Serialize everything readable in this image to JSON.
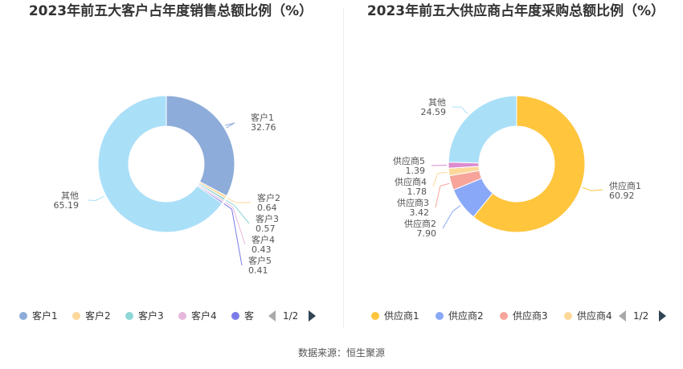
{
  "charts": [
    {
      "title": "2023年前五大客户占年度销售总额比例（%）",
      "pager": "1/2",
      "legend": [
        "客户1",
        "客户2",
        "客户3",
        "客户4",
        "客"
      ]
    },
    {
      "title": "2023年前五大供应商占年度采购总额比例（%）",
      "pager": "1/2",
      "legend": [
        "供应商1",
        "供应商2",
        "供应商3",
        "供应商4"
      ]
    }
  ],
  "source": "数据来源：恒生聚源",
  "chart_data": [
    {
      "type": "pie",
      "title": "2023年前五大客户占年度销售总额比例（%）",
      "donut": true,
      "legend_position": "bottom",
      "slices": [
        {
          "name": "客户1",
          "value": 32.76,
          "label": "32.76",
          "color": "#8eacd9"
        },
        {
          "name": "客户2",
          "value": 0.64,
          "label": "0.64",
          "color": "#fdd89b"
        },
        {
          "name": "客户3",
          "value": 0.57,
          "label": "0.57",
          "color": "#8fd6d6"
        },
        {
          "name": "客户4",
          "value": 0.43,
          "label": "0.43",
          "color": "#e6b8dc"
        },
        {
          "name": "客户5",
          "value": 0.41,
          "label": "0.41",
          "color": "#7b7be8"
        },
        {
          "name": "其他",
          "value": 65.19,
          "label": "65.19",
          "color": "#aadff8"
        }
      ]
    },
    {
      "type": "pie",
      "title": "2023年前五大供应商占年度采购总额比例（%）",
      "donut": true,
      "legend_position": "bottom",
      "slices": [
        {
          "name": "供应商1",
          "value": 60.92,
          "label": "60.92",
          "color": "#ffc53d"
        },
        {
          "name": "供应商2",
          "value": 7.9,
          "label": "7.90",
          "color": "#8aa8f8"
        },
        {
          "name": "供应商3",
          "value": 3.42,
          "label": "3.42",
          "color": "#f7a59a"
        },
        {
          "name": "供应商4",
          "value": 1.78,
          "label": "1.78",
          "color": "#fdd89b"
        },
        {
          "name": "供应商5",
          "value": 1.39,
          "label": "1.39",
          "color": "#dc8ccf"
        },
        {
          "name": "其他",
          "value": 24.59,
          "label": "24.59",
          "color": "#aadff8"
        }
      ]
    }
  ]
}
